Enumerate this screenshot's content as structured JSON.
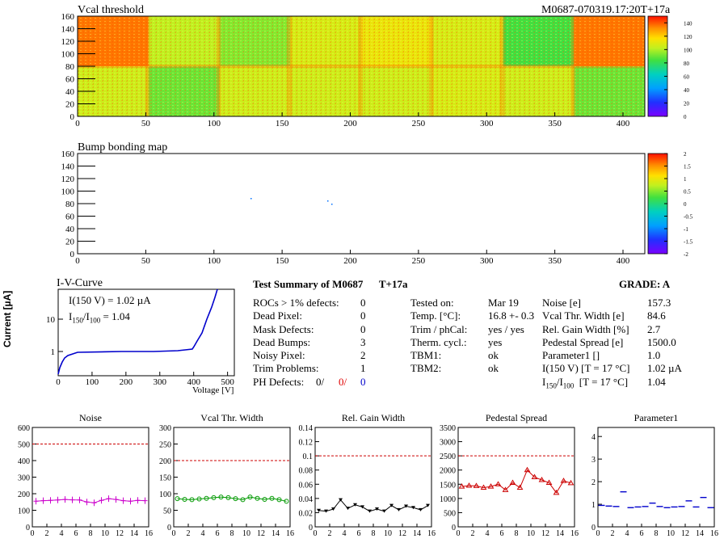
{
  "header": {
    "left_title": "Vcal threshold",
    "right_title": "M0687-070319.17:20T+17a"
  },
  "vcal_map": {
    "x_ticks": [
      "0",
      "50",
      "100",
      "150",
      "200",
      "250",
      "300",
      "350",
      "400"
    ],
    "y_ticks": [
      "0",
      "20",
      "40",
      "60",
      "80",
      "100",
      "120",
      "140",
      "160"
    ],
    "palette_ticks": [
      "0",
      "20",
      "40",
      "60",
      "80",
      "100",
      "120",
      "140"
    ],
    "roc_levels": {
      "top": [
        128,
        95,
        88,
        100,
        105,
        100,
        80,
        128
      ],
      "bottom": [
        98,
        85,
        98,
        98,
        98,
        100,
        98,
        85
      ]
    }
  },
  "bump_map": {
    "title": "Bump bonding map",
    "x_ticks": [
      "0",
      "50",
      "100",
      "150",
      "200",
      "250",
      "300",
      "350",
      "400"
    ],
    "y_ticks": [
      "0",
      "20",
      "40",
      "60",
      "80",
      "100",
      "120",
      "140",
      "160"
    ],
    "palette_ticks": [
      "-2",
      "-1.5",
      "-1",
      "-0.5",
      "0",
      "0.5",
      "1",
      "1.5",
      "2"
    ]
  },
  "iv_curve": {
    "title": "I-V-Curve",
    "ylabel": "Current [µA]",
    "xlabel": "Voltage [V]",
    "x_ticks": [
      "0",
      "100",
      "200",
      "300",
      "400",
      "500"
    ],
    "y_ticks": [
      "1",
      "10"
    ],
    "annot1": "I(150 V) = 1.02 µA",
    "annot2_prefix": "I",
    "annot2_sub1": "150",
    "annot2_mid": "/I",
    "annot2_sub2": "100",
    "annot2_value": " =  1.04"
  },
  "summary": {
    "title": "Test Summary of M0687",
    "tag": "T+17a",
    "grade": "GRADE:  A",
    "col1": [
      {
        "label": "ROCs > 1% defects:",
        "value": "0"
      },
      {
        "label": "Dead Pixel:",
        "value": "0"
      },
      {
        "label": "Mask Defects:",
        "value": "0"
      },
      {
        "label": "Dead Bumps:",
        "value": "3"
      },
      {
        "label": "Noisy Pixel:",
        "value": "2"
      },
      {
        "label": "Trim Problems:",
        "value": "1"
      }
    ],
    "ph_label": "PH Defects:",
    "ph_v1": "0/",
    "ph_v2": "0/",
    "ph_v3": "0",
    "col2": [
      {
        "label": "Tested on:",
        "value": "Mar 19"
      },
      {
        "label": "Temp. [°C]:",
        "value": "16.8 +- 0.3"
      },
      {
        "label": "Trim / phCal:",
        "value": "yes / yes"
      },
      {
        "label": "Therm. cycl.:",
        "value": "yes"
      },
      {
        "label": "TBM1:",
        "value": "ok"
      },
      {
        "label": "TBM2:",
        "value": "ok"
      }
    ],
    "col3": [
      {
        "label": "Noise [e]",
        "value": "157.3"
      },
      {
        "label": "Vcal Thr. Width [e]",
        "value": "84.6"
      },
      {
        "label": "Rel. Gain Width [%]",
        "value": "2.7"
      },
      {
        "label": "Pedestal Spread [e]",
        "value": "1500.0"
      },
      {
        "label": "Parameter1 []",
        "value": "1.0"
      },
      {
        "label": "I(150 V) [T = 17 °C]",
        "value": "1.02 µA"
      }
    ],
    "ratio_label_a": "I",
    "ratio_sub1": "150",
    "ratio_label_b": "/I",
    "ratio_sub2": "100",
    "ratio_label_c": "  [T = 17 °C]",
    "ratio_value": "1.04"
  },
  "chart_data": [
    {
      "type": "line",
      "title": "Noise",
      "x": [
        0,
        1,
        2,
        3,
        4,
        5,
        6,
        7,
        8,
        9,
        10,
        11,
        12,
        13,
        14,
        15
      ],
      "values": [
        155,
        158,
        160,
        162,
        165,
        163,
        162,
        150,
        145,
        160,
        170,
        165,
        158,
        155,
        160,
        158
      ],
      "ylim": [
        0,
        600
      ],
      "y_ticks": [
        0,
        100,
        200,
        300,
        400,
        500,
        600
      ],
      "ref": 500,
      "color": "#cc00cc",
      "marker": "cross"
    },
    {
      "type": "line",
      "title": "Vcal Thr. Width",
      "x": [
        0,
        1,
        2,
        3,
        4,
        5,
        6,
        7,
        8,
        9,
        10,
        11,
        12,
        13,
        14,
        15
      ],
      "values": [
        85,
        83,
        82,
        84,
        86,
        88,
        90,
        88,
        85,
        82,
        90,
        86,
        83,
        86,
        82,
        77
      ],
      "ylim": [
        0,
        300
      ],
      "y_ticks": [
        0,
        50,
        100,
        150,
        200,
        250,
        300
      ],
      "ref": 200,
      "color": "#009900",
      "marker": "circle"
    },
    {
      "type": "line",
      "title": "Rel. Gain Width",
      "x": [
        0,
        1,
        2,
        3,
        4,
        5,
        6,
        7,
        8,
        9,
        10,
        11,
        12,
        13,
        14,
        15
      ],
      "values": [
        0.023,
        0.022,
        0.025,
        0.038,
        0.026,
        0.031,
        0.028,
        0.022,
        0.025,
        0.022,
        0.03,
        0.024,
        0.029,
        0.027,
        0.024,
        0.03
      ],
      "ylim": [
        0,
        0.14
      ],
      "y_ticks": [
        0,
        0.02,
        0.04,
        0.06,
        0.08,
        0.1,
        0.12,
        0.14
      ],
      "ref": 0.1,
      "color": "#000000",
      "marker": "tri-down"
    },
    {
      "type": "line",
      "title": "Pedestal Spread",
      "x": [
        0,
        1,
        2,
        3,
        4,
        5,
        6,
        7,
        8,
        9,
        10,
        11,
        12,
        13,
        14,
        15
      ],
      "values": [
        1420,
        1450,
        1440,
        1380,
        1420,
        1500,
        1300,
        1550,
        1380,
        2000,
        1750,
        1650,
        1550,
        1200,
        1620,
        1540
      ],
      "ylim": [
        0,
        3500
      ],
      "y_ticks": [
        0,
        500,
        1000,
        1500,
        2000,
        2500,
        3000,
        3500
      ],
      "ref": 2500,
      "color": "#cc0000",
      "marker": "tri-up"
    },
    {
      "type": "scatter",
      "title": "Parameter1",
      "x": [
        0,
        1,
        2,
        3,
        4,
        5,
        6,
        7,
        8,
        9,
        10,
        11,
        12,
        13,
        14,
        15
      ],
      "values": [
        0.95,
        0.92,
        0.9,
        1.55,
        0.85,
        0.88,
        0.9,
        1.05,
        0.9,
        0.85,
        0.88,
        0.9,
        1.15,
        0.88,
        1.3,
        0.85
      ],
      "ylim": [
        0,
        4.4
      ],
      "y_ticks": [
        0,
        1,
        2,
        3,
        4
      ],
      "ref": null,
      "color": "#0000cc",
      "marker": "hbar"
    }
  ]
}
